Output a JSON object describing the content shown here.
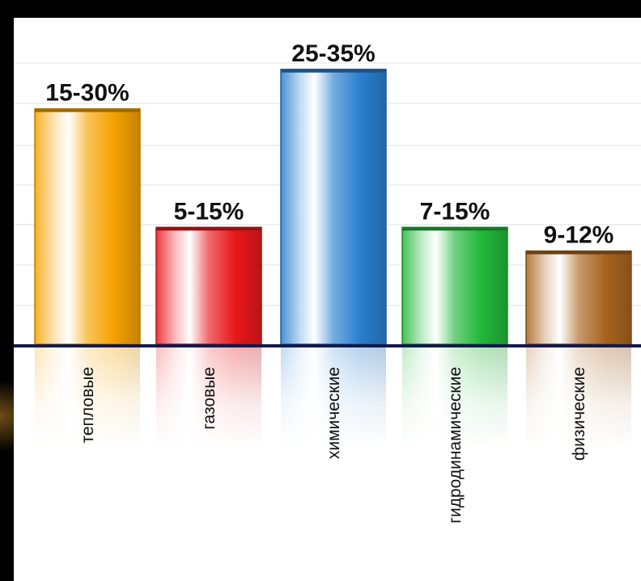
{
  "chart_data": {
    "type": "bar",
    "categories": [
      "тепловые",
      "газовые",
      "химические",
      "гидродинамические",
      "физические"
    ],
    "value_labels": [
      "15-30%",
      "5-15%",
      "25-35%",
      "7-15%",
      "9-12%"
    ],
    "ranges": [
      [
        15,
        30
      ],
      [
        5,
        15
      ],
      [
        25,
        35
      ],
      [
        7,
        15
      ],
      [
        9,
        12
      ]
    ],
    "values": [
      30,
      15,
      35,
      15,
      12
    ],
    "ylim": [
      0,
      36
    ],
    "grid": true,
    "colors": [
      "#f5a200",
      "#e8181c",
      "#2a7fd0",
      "#22b83a",
      "#a8641e"
    ],
    "title": "",
    "xlabel": "",
    "ylabel": ""
  }
}
